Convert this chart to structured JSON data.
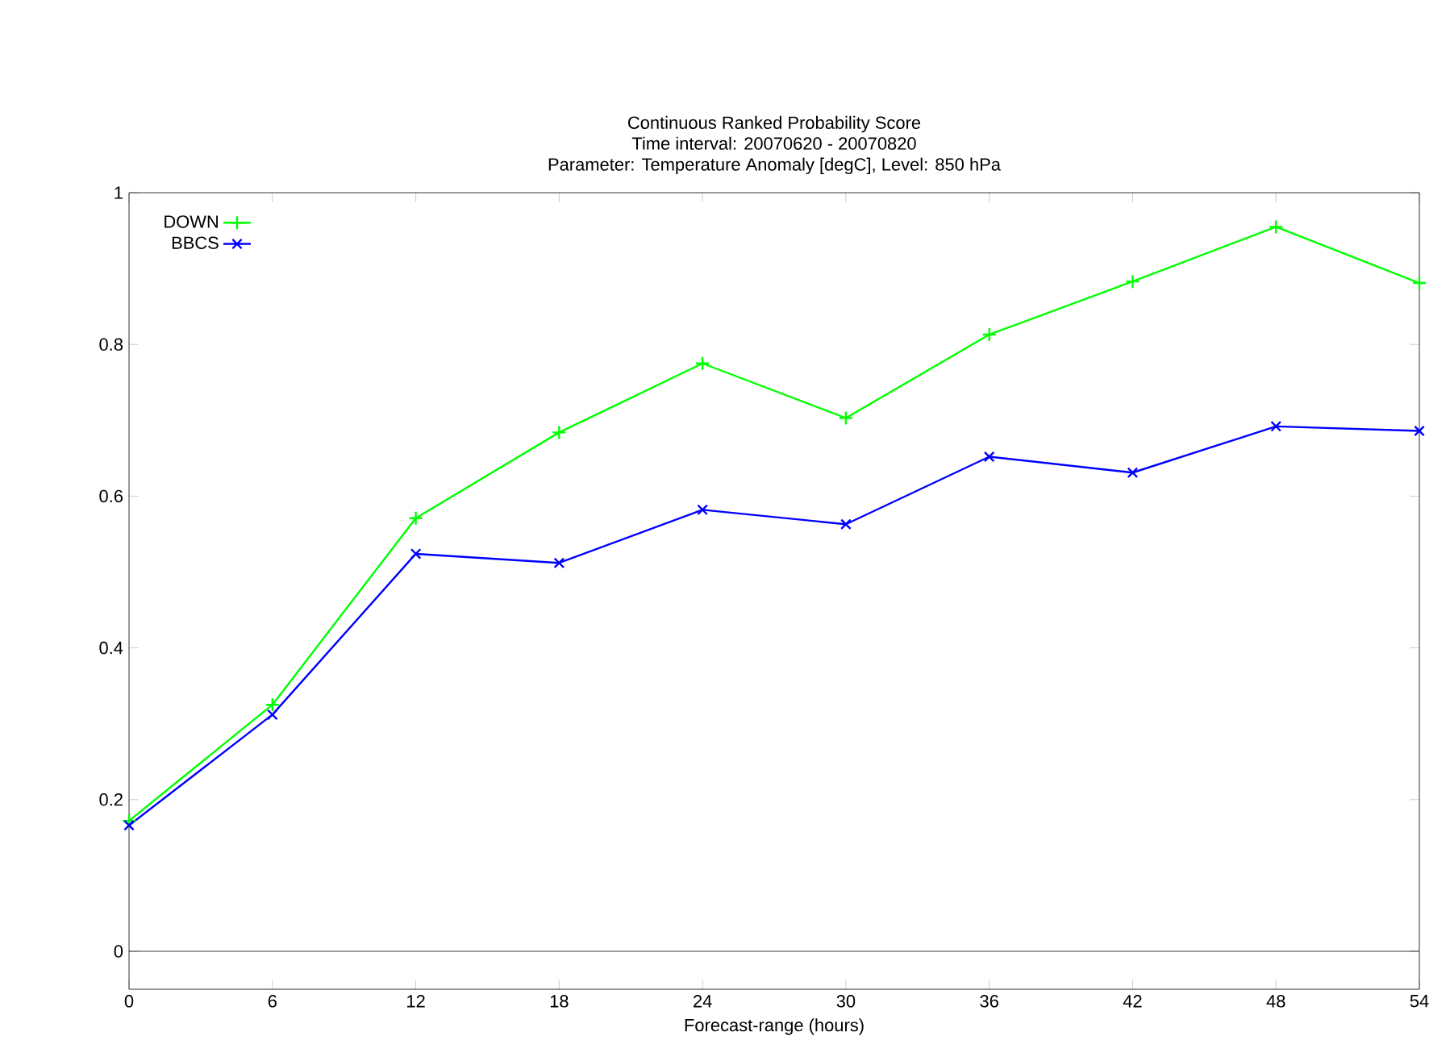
{
  "chart_data": {
    "type": "line",
    "title": "Continuous Ranked Probability Score",
    "subtitle": [
      "Time interval: 20070620 - 20070820",
      "Parameter: Temperature Anomaly [degC], Level: 850 hPa"
    ],
    "xlabel": "Forecast-range (hours)",
    "x": [
      0,
      6,
      12,
      18,
      24,
      30,
      36,
      42,
      48,
      54
    ],
    "series": [
      {
        "name": "DOWN",
        "color": "#00ff00",
        "marker": "plus",
        "values": [
          0.172,
          0.325,
          0.571,
          0.684,
          0.775,
          0.703,
          0.813,
          0.883,
          0.955,
          0.881
        ]
      },
      {
        "name": "BBCS",
        "color": "#0000ff",
        "marker": "cross",
        "values": [
          0.166,
          0.312,
          0.524,
          0.512,
          0.582,
          0.563,
          0.652,
          0.631,
          0.692,
          0.686
        ]
      }
    ],
    "xlim": [
      0,
      54
    ],
    "xticks": [
      0,
      6,
      12,
      18,
      24,
      30,
      36,
      42,
      48,
      54
    ],
    "ylim": [
      -0.05,
      1
    ],
    "yticks": [
      0,
      0.2,
      0.4,
      0.6,
      0.8,
      1
    ],
    "ref_lines": [
      {
        "axis": "y",
        "value": 0,
        "color": "#000000"
      }
    ],
    "legend": "top left",
    "grid": false,
    "line_style": "solid"
  }
}
